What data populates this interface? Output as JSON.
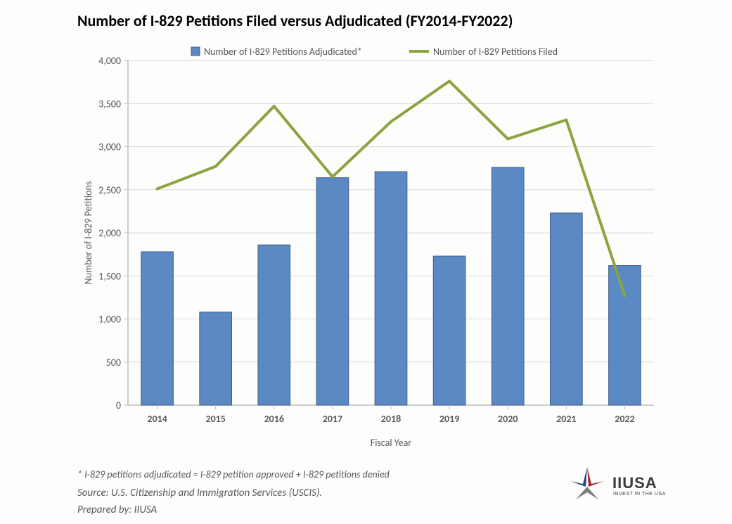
{
  "title": "Number of I-829 Petitions Filed versus Adjudicated (FY2014-FY2022)",
  "chart": {
    "type": "bar+line",
    "categories": [
      "2014",
      "2015",
      "2016",
      "2017",
      "2018",
      "2019",
      "2020",
      "2021",
      "2022"
    ],
    "series_bar": {
      "name": "Number of I-829 Petitions Adjudicated*",
      "color": "#5b89c4",
      "border_color": "#42608a",
      "values": [
        1780,
        1080,
        1860,
        2640,
        2710,
        1730,
        2760,
        2230,
        1620
      ]
    },
    "series_line": {
      "name": "Number of I-829 Petitions Filed",
      "color": "#8ba43f",
      "line_width": 4,
      "values": [
        2510,
        2770,
        3470,
        2650,
        3290,
        3760,
        3090,
        3310,
        1270
      ]
    },
    "ylim": [
      0,
      4000
    ],
    "ytick_step": 500,
    "yticks": [
      "0",
      "500",
      "1,000",
      "1,500",
      "2,000",
      "2,500",
      "3,000",
      "3,500",
      "4,000"
    ],
    "ylabel": "Number of I-829 Petitions",
    "xlabel": "Fiscal Year",
    "axis_color": "#bfbfbf",
    "grid_color": "#d9d9d9",
    "tick_font_color": "#595959",
    "tick_fontsize": 14,
    "axis_label_fontsize": 14,
    "title_fontsize": 22,
    "background_color": "#fdfdfc",
    "bar_width": 0.55,
    "legend": {
      "bar_marker_color": "#5b89c4",
      "line_marker_color": "#8ba43f"
    }
  },
  "footnotes": {
    "note": "* I-829 petitions adjudicated = I-829 petition approved + I-829 petitions denied",
    "source": "Source: U.S. Citizenship and Immigration Services (USCIS).",
    "prepared": "Prepared by: IIUSA"
  },
  "logo": {
    "text_main": "IIUSA",
    "text_sub": "INVEST IN THE USA",
    "star_red": "#a8262e",
    "star_blue": "#224a88",
    "star_grey": "#7d7d7d"
  }
}
